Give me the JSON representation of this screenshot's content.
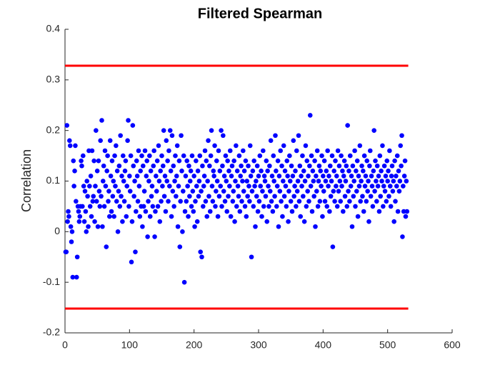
{
  "chart_data": {
    "type": "scatter",
    "title": "Filtered Spearman",
    "y_label": "Correlation",
    "xlim": [
      0,
      600
    ],
    "xticks": [
      0,
      100,
      200,
      300,
      400,
      500,
      600
    ],
    "ylim": [
      -0.2,
      0.4
    ],
    "yticks": [
      -0.2,
      -0.1,
      0,
      0.1,
      0.2,
      0.3,
      0.4
    ],
    "grid": false,
    "color": "#0000ff",
    "hlines": [
      {
        "y": 0.328,
        "x": [
          0,
          532
        ],
        "color": "#ff0000"
      },
      {
        "y": -0.152,
        "x": [
          0,
          532
        ],
        "color": "#ff0000"
      }
    ],
    "x": [
      1,
      2,
      3,
      4,
      5,
      6,
      7,
      8,
      9,
      10,
      11,
      12,
      13,
      14,
      15,
      16,
      17,
      18,
      19,
      20,
      21,
      22,
      23,
      24,
      25,
      26,
      27,
      28,
      29,
      30,
      31,
      32,
      33,
      34,
      35,
      36,
      37,
      38,
      39,
      40,
      41,
      42,
      43,
      44,
      45,
      46,
      47,
      48,
      49,
      50,
      51,
      52,
      53,
      54,
      55,
      56,
      57,
      58,
      59,
      60,
      61,
      62,
      63,
      64,
      65,
      66,
      67,
      68,
      69,
      70,
      71,
      72,
      73,
      74,
      75,
      76,
      77,
      78,
      79,
      80,
      81,
      82,
      83,
      84,
      85,
      86,
      87,
      88,
      89,
      90,
      91,
      92,
      93,
      94,
      95,
      96,
      97,
      98,
      99,
      100,
      101,
      102,
      103,
      104,
      105,
      106,
      107,
      108,
      109,
      110,
      111,
      112,
      113,
      114,
      115,
      116,
      117,
      118,
      119,
      120,
      121,
      122,
      123,
      124,
      125,
      126,
      127,
      128,
      129,
      130,
      131,
      132,
      133,
      134,
      135,
      136,
      137,
      138,
      139,
      140,
      141,
      142,
      143,
      144,
      145,
      146,
      147,
      148,
      149,
      150,
      151,
      152,
      153,
      154,
      155,
      156,
      157,
      158,
      159,
      160,
      161,
      162,
      163,
      164,
      165,
      166,
      167,
      168,
      169,
      170,
      171,
      172,
      173,
      174,
      175,
      176,
      177,
      178,
      179,
      180,
      181,
      182,
      183,
      184,
      185,
      186,
      187,
      188,
      189,
      190,
      191,
      192,
      193,
      194,
      195,
      196,
      197,
      198,
      199,
      200,
      201,
      202,
      203,
      204,
      205,
      206,
      207,
      208,
      209,
      210,
      211,
      212,
      213,
      214,
      215,
      216,
      217,
      218,
      219,
      220,
      221,
      222,
      223,
      224,
      225,
      226,
      227,
      228,
      229,
      230,
      231,
      232,
      233,
      234,
      235,
      236,
      237,
      238,
      239,
      240,
      241,
      242,
      243,
      244,
      245,
      246,
      247,
      248,
      249,
      250,
      251,
      252,
      253,
      254,
      255,
      256,
      257,
      258,
      259,
      260,
      261,
      262,
      263,
      264,
      265,
      266,
      267,
      268,
      269,
      270,
      271,
      272,
      273,
      274,
      275,
      276,
      277,
      278,
      279,
      280,
      281,
      282,
      283,
      284,
      285,
      286,
      287,
      288,
      289,
      290,
      291,
      292,
      293,
      294,
      295,
      296,
      297,
      298,
      299,
      300,
      301,
      302,
      303,
      304,
      305,
      306,
      307,
      308,
      309,
      310,
      311,
      312,
      313,
      314,
      315,
      316,
      317,
      318,
      319,
      320,
      321,
      322,
      323,
      324,
      325,
      326,
      327,
      328,
      329,
      330,
      331,
      332,
      333,
      334,
      335,
      336,
      337,
      338,
      339,
      340,
      341,
      342,
      343,
      344,
      345,
      346,
      347,
      348,
      349,
      350,
      351,
      352,
      353,
      354,
      355,
      356,
      357,
      358,
      359,
      360,
      361,
      362,
      363,
      364,
      365,
      366,
      367,
      368,
      369,
      370,
      371,
      372,
      373,
      374,
      375,
      376,
      377,
      378,
      379,
      380,
      381,
      382,
      383,
      384,
      385,
      386,
      387,
      388,
      389,
      390,
      391,
      392,
      393,
      394,
      395,
      396,
      397,
      398,
      399,
      400,
      401,
      402,
      403,
      404,
      405,
      406,
      407,
      408,
      409,
      410,
      411,
      412,
      413,
      414,
      415,
      416,
      417,
      418,
      419,
      420,
      421,
      422,
      423,
      424,
      425,
      426,
      427,
      428,
      429,
      430,
      431,
      432,
      433,
      434,
      435,
      436,
      437,
      438,
      439,
      440,
      441,
      442,
      443,
      444,
      445,
      446,
      447,
      448,
      449,
      450,
      451,
      452,
      453,
      454,
      455,
      456,
      457,
      458,
      459,
      460,
      461,
      462,
      463,
      464,
      465,
      466,
      467,
      468,
      469,
      470,
      471,
      472,
      473,
      474,
      475,
      476,
      477,
      478,
      479,
      480,
      481,
      482,
      483,
      484,
      485,
      486,
      487,
      488,
      489,
      490,
      491,
      492,
      493,
      494,
      495,
      496,
      497,
      498,
      499,
      500,
      501,
      502,
      503,
      504,
      505,
      506,
      507,
      508,
      509,
      510,
      511,
      512,
      513,
      514,
      515,
      516,
      517,
      518,
      519,
      520,
      521,
      522,
      523,
      524,
      525,
      526,
      527,
      528,
      529,
      530
    ],
    "values": [
      -0.04,
      -0.04,
      0.21,
      0.02,
      0.04,
      0.03,
      0.18,
      0.17,
      0.01,
      -0.02,
      0.0,
      -0.09,
      0.14,
      0.09,
      0.12,
      0.17,
      0.06,
      -0.09,
      -0.05,
      0.05,
      0.04,
      0.02,
      0.03,
      0.05,
      0.14,
      0.13,
      0.05,
      0.15,
      0.09,
      0.02,
      0.08,
      0.04,
      0.0,
      0.1,
      0.07,
      0.01,
      0.16,
      0.09,
      0.05,
      0.11,
      0.03,
      0.16,
      0.06,
      0.07,
      0.14,
      0.02,
      0.09,
      0.2,
      0.06,
      0.12,
      0.01,
      0.14,
      0.08,
      0.05,
      0.18,
      0.07,
      0.22,
      0.01,
      0.1,
      0.13,
      0.05,
      0.16,
      0.09,
      -0.03,
      0.12,
      0.15,
      0.06,
      0.08,
      0.03,
      0.18,
      0.11,
      0.04,
      0.14,
      0.07,
      0.1,
      0.03,
      0.15,
      0.09,
      0.17,
      0.06,
      0.12,
      0.0,
      0.08,
      0.13,
      0.05,
      0.19,
      0.07,
      0.11,
      0.02,
      0.15,
      0.1,
      0.06,
      0.12,
      0.14,
      0.03,
      0.09,
      0.18,
      0.22,
      0.05,
      0.11,
      0.08,
      0.15,
      -0.06,
      0.02,
      0.21,
      0.13,
      0.07,
      0.1,
      -0.04,
      0.04,
      0.14,
      0.11,
      0.06,
      0.16,
      0.09,
      0.03,
      0.12,
      0.05,
      0.15,
      0.01,
      0.13,
      0.05,
      0.08,
      0.16,
      0.04,
      0.11,
      0.14,
      -0.01,
      0.06,
      0.1,
      0.15,
      0.03,
      0.12,
      0.07,
      0.09,
      0.05,
      0.13,
      0.16,
      -0.01,
      0.04,
      0.11,
      0.08,
      0.14,
      0.05,
      0.17,
      0.1,
      0.02,
      0.12,
      0.06,
      0.15,
      0.09,
      0.13,
      0.2,
      0.07,
      0.11,
      0.04,
      0.18,
      0.1,
      0.14,
      0.06,
      0.16,
      0.09,
      0.2,
      0.12,
      0.03,
      0.19,
      0.08,
      0.13,
      0.05,
      0.1,
      0.15,
      0.07,
      0.11,
      0.17,
      0.01,
      0.09,
      0.14,
      -0.03,
      0.06,
      0.19,
      0.12,
      0.0,
      0.08,
      0.15,
      -0.1,
      0.04,
      0.11,
      0.06,
      0.14,
      0.09,
      0.03,
      0.13,
      0.07,
      0.1,
      0.12,
      0.05,
      0.15,
      0.08,
      0.04,
      0.11,
      0.01,
      0.06,
      0.14,
      0.09,
      0.02,
      0.12,
      0.07,
      0.1,
      0.15,
      -0.04,
      0.08,
      -0.05,
      0.13,
      0.05,
      0.09,
      0.11,
      0.16,
      0.06,
      0.14,
      0.03,
      0.1,
      0.18,
      0.07,
      0.13,
      0.04,
      0.15,
      0.2,
      0.09,
      0.06,
      0.12,
      0.11,
      0.17,
      0.05,
      0.08,
      0.14,
      0.1,
      0.03,
      0.16,
      0.07,
      0.12,
      0.09,
      0.2,
      0.05,
      0.13,
      0.19,
      0.08,
      0.11,
      0.06,
      0.15,
      0.1,
      0.04,
      0.14,
      0.07,
      0.12,
      0.09,
      0.16,
      0.03,
      0.11,
      0.13,
      0.06,
      0.08,
      0.14,
      0.02,
      0.1,
      0.17,
      0.05,
      0.12,
      0.09,
      0.07,
      0.15,
      0.04,
      0.11,
      0.13,
      0.06,
      0.1,
      0.16,
      0.08,
      0.12,
      0.05,
      0.14,
      0.03,
      0.1,
      0.07,
      0.13,
      0.09,
      0.06,
      0.17,
      0.11,
      -0.05,
      0.08,
      0.12,
      0.05,
      0.14,
      0.09,
      0.01,
      0.1,
      0.07,
      0.13,
      0.04,
      0.11,
      0.06,
      0.15,
      0.09,
      0.12,
      0.03,
      0.08,
      0.16,
      0.05,
      0.11,
      0.1,
      0.07,
      0.14,
      0.02,
      0.12,
      0.09,
      0.05,
      0.13,
      0.08,
      0.18,
      0.06,
      0.11,
      0.04,
      0.15,
      0.1,
      0.07,
      0.19,
      0.12,
      0.05,
      0.09,
      0.14,
      0.01,
      0.11,
      0.08,
      0.16,
      0.06,
      0.13,
      0.03,
      0.1,
      0.17,
      0.07,
      0.12,
      0.09,
      0.05,
      0.14,
      0.11,
      0.02,
      0.08,
      0.15,
      0.1,
      0.06,
      0.13,
      0.04,
      0.11,
      0.18,
      0.07,
      0.09,
      0.12,
      0.05,
      0.16,
      0.08,
      0.1,
      0.19,
      0.06,
      0.13,
      0.03,
      0.11,
      0.09,
      0.15,
      0.07,
      0.12,
      0.02,
      0.1,
      0.17,
      0.05,
      0.14,
      0.08,
      0.11,
      0.06,
      0.13,
      0.23,
      0.09,
      0.15,
      0.04,
      0.12,
      0.1,
      0.07,
      0.14,
      0.01,
      0.11,
      0.08,
      0.16,
      0.05,
      0.1,
      0.13,
      0.06,
      0.12,
      0.09,
      0.15,
      0.03,
      0.11,
      0.08,
      0.14,
      0.06,
      0.1,
      0.12,
      0.05,
      0.16,
      0.09,
      0.11,
      0.04,
      0.13,
      0.07,
      0.1,
      0.15,
      -0.03,
      0.08,
      0.12,
      0.06,
      0.14,
      0.09,
      0.11,
      0.05,
      0.16,
      0.08,
      0.13,
      0.1,
      0.06,
      0.15,
      0.09,
      0.12,
      0.04,
      0.11,
      0.14,
      0.07,
      0.1,
      0.13,
      0.05,
      0.21,
      0.08,
      0.12,
      0.06,
      0.15,
      0.09,
      0.11,
      0.01,
      0.13,
      0.07,
      0.1,
      0.16,
      0.05,
      0.12,
      0.08,
      0.14,
      0.03,
      0.11,
      0.09,
      0.17,
      0.06,
      0.1,
      0.13,
      0.07,
      0.12,
      0.04,
      0.15,
      0.09,
      0.11,
      0.06,
      0.14,
      0.08,
      0.1,
      0.02,
      0.13,
      0.16,
      0.07,
      0.11,
      0.09,
      0.05,
      0.12,
      0.2,
      0.08,
      0.14,
      0.1,
      0.06,
      0.13,
      0.09,
      0.11,
      0.04,
      0.15,
      0.07,
      0.12,
      0.1,
      0.17,
      0.05,
      0.09,
      0.13,
      0.08,
      0.11,
      0.06,
      0.14,
      0.1,
      0.12,
      0.07,
      0.16,
      0.09,
      0.05,
      0.11,
      0.13,
      0.08,
      0.1,
      0.02,
      0.14,
      0.06,
      0.11,
      0.09,
      0.15,
      0.04,
      0.12,
      0.08,
      0.1,
      0.17,
      0.13,
      0.19,
      -0.01,
      0.09,
      0.04,
      0.11,
      0.14,
      0.03,
      0.1,
      0.04
    ]
  }
}
